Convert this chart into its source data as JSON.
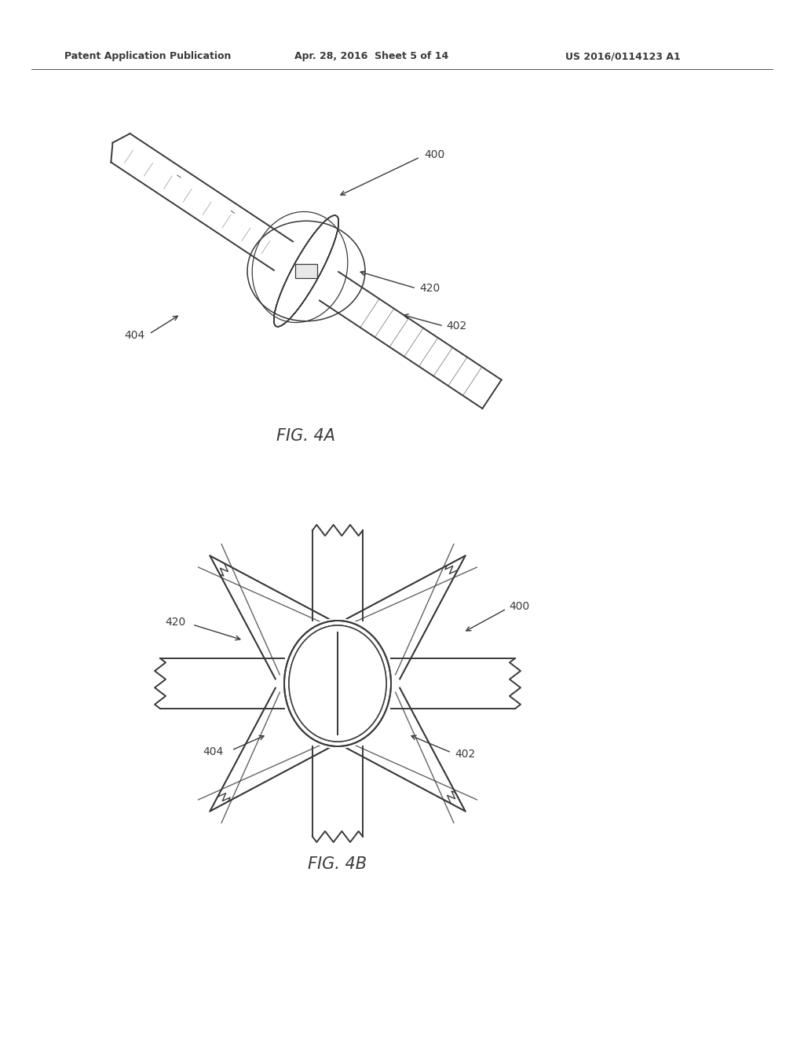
{
  "bg_color": "#ffffff",
  "header_left": "Patent Application Publication",
  "header_mid": "Apr. 28, 2016  Sheet 5 of 14",
  "header_right": "US 2016/0114123 A1",
  "fig4a_label": "FIG. 4A",
  "fig4b_label": "FIG. 4B",
  "ref_400": "400",
  "ref_402": "402",
  "ref_404": "404",
  "ref_420": "420",
  "line_color": "#3a3a3a",
  "line_width": 1.4,
  "thin_line": 0.9
}
